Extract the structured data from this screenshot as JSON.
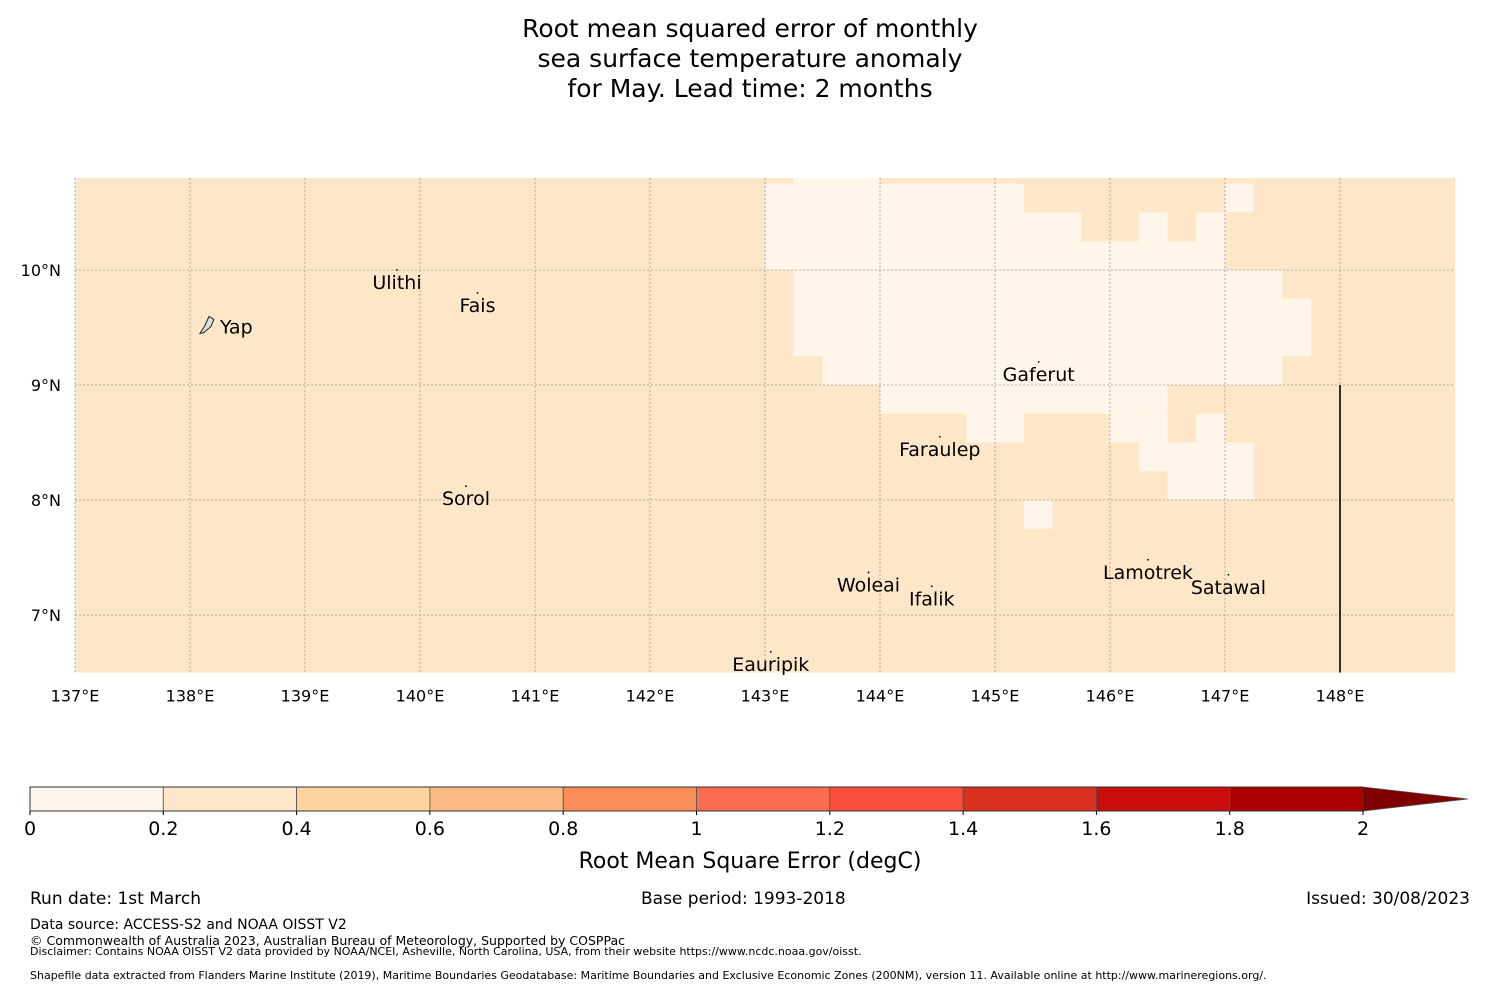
{
  "title": {
    "line1": "Root mean squared error of monthly",
    "line2": "sea surface temperature anomaly",
    "line3": "for May. Lead time: 2 months"
  },
  "map": {
    "lon_range": [
      137,
      149
    ],
    "lat_range": [
      6.5,
      10.8
    ],
    "grid_resolution_deg": 0.25,
    "lon_ticks": [
      {
        "value": 137,
        "label": "137°E"
      },
      {
        "value": 138,
        "label": "138°E"
      },
      {
        "value": 139,
        "label": "139°E"
      },
      {
        "value": 140,
        "label": "140°E"
      },
      {
        "value": 141,
        "label": "141°E"
      },
      {
        "value": 142,
        "label": "142°E"
      },
      {
        "value": 143,
        "label": "143°E"
      },
      {
        "value": 144,
        "label": "144°E"
      },
      {
        "value": 145,
        "label": "145°E"
      },
      {
        "value": 146,
        "label": "146°E"
      },
      {
        "value": 147,
        "label": "147°E"
      },
      {
        "value": 148,
        "label": "148°E"
      }
    ],
    "lat_ticks": [
      {
        "value": 10,
        "label": "10°N"
      },
      {
        "value": 9,
        "label": "9°N"
      },
      {
        "value": 8,
        "label": "8°N"
      },
      {
        "value": 7,
        "label": "7°N"
      }
    ],
    "base_class": "0.2-0.4",
    "low_error_class": "0-0.2",
    "low_error_cells": [
      {
        "lon0": 143.0,
        "lon1": 143.25,
        "lat0": 10.0,
        "lat1": 10.75
      },
      {
        "lon0": 143.25,
        "lon1": 143.5,
        "lat0": 9.25,
        "lat1": 10.8
      },
      {
        "lon0": 143.5,
        "lon1": 144.0,
        "lat0": 9.0,
        "lat1": 10.8
      },
      {
        "lon0": 144.0,
        "lon1": 144.75,
        "lat0": 8.75,
        "lat1": 10.75
      },
      {
        "lon0": 144.75,
        "lon1": 145.0,
        "lat0": 8.5,
        "lat1": 10.75
      },
      {
        "lon0": 145.0,
        "lon1": 145.25,
        "lat0": 8.5,
        "lat1": 10.75
      },
      {
        "lon0": 145.25,
        "lon1": 145.75,
        "lat0": 8.75,
        "lat1": 10.5
      },
      {
        "lon0": 145.75,
        "lon1": 146.25,
        "lat0": 8.75,
        "lat1": 10.25
      },
      {
        "lon0": 146.25,
        "lon1": 146.5,
        "lat0": 8.75,
        "lat1": 10.5
      },
      {
        "lon0": 146.5,
        "lon1": 146.75,
        "lat0": 9.0,
        "lat1": 10.25
      },
      {
        "lon0": 146.75,
        "lon1": 147.0,
        "lat0": 9.0,
        "lat1": 10.5
      },
      {
        "lon0": 147.0,
        "lon1": 147.5,
        "lat0": 9.0,
        "lat1": 10.0
      },
      {
        "lon0": 147.5,
        "lon1": 147.75,
        "lat0": 9.25,
        "lat1": 9.75
      },
      {
        "lon0": 146.0,
        "lon1": 146.25,
        "lat0": 8.5,
        "lat1": 8.75
      },
      {
        "lon0": 146.25,
        "lon1": 146.5,
        "lat0": 8.25,
        "lat1": 8.75
      },
      {
        "lon0": 146.5,
        "lon1": 146.75,
        "lat0": 8.0,
        "lat1": 8.5
      },
      {
        "lon0": 146.75,
        "lon1": 147.0,
        "lat0": 8.0,
        "lat1": 8.75
      },
      {
        "lon0": 147.0,
        "lon1": 147.25,
        "lat0": 8.0,
        "lat1": 8.5
      },
      {
        "lon0": 145.25,
        "lon1": 145.5,
        "lat0": 7.75,
        "lat1": 8.0
      },
      {
        "lon0": 147.0,
        "lon1": 147.25,
        "lat0": 10.5,
        "lat1": 10.75
      }
    ],
    "boundary_line": {
      "lon": 148.0,
      "lat0": 6.5,
      "lat1": 9.0
    },
    "places": [
      {
        "name": "Yap",
        "lon": 138.13,
        "lat": 9.5
      },
      {
        "name": "Ulithi",
        "lon": 139.8,
        "lat": 10.0
      },
      {
        "name": "Fais",
        "lon": 140.5,
        "lat": 9.8
      },
      {
        "name": "Sorol",
        "lon": 140.4,
        "lat": 8.12
      },
      {
        "name": "Gaferut",
        "lon": 145.38,
        "lat": 9.2
      },
      {
        "name": "Faraulep",
        "lon": 144.52,
        "lat": 8.55
      },
      {
        "name": "Woleai",
        "lon": 143.9,
        "lat": 7.37
      },
      {
        "name": "Ifalik",
        "lon": 144.45,
        "lat": 7.25
      },
      {
        "name": "Lamotrek",
        "lon": 146.33,
        "lat": 7.48
      },
      {
        "name": "Satawal",
        "lon": 147.03,
        "lat": 7.35
      },
      {
        "name": "Eauripik",
        "lon": 143.05,
        "lat": 6.68
      }
    ]
  },
  "colorbar": {
    "label": "Root Mean Square Error (degC)",
    "bins": [
      {
        "from": 0,
        "to": 0.2,
        "color": "#fff5e8"
      },
      {
        "from": 0.2,
        "to": 0.4,
        "color": "#fee6c8"
      },
      {
        "from": 0.4,
        "to": 0.6,
        "color": "#fdd49e"
      },
      {
        "from": 0.6,
        "to": 0.8,
        "color": "#fdbb84"
      },
      {
        "from": 0.8,
        "to": 1.0,
        "color": "#fc8d59"
      },
      {
        "from": 1.0,
        "to": 1.2,
        "color": "#fc6c4f"
      },
      {
        "from": 1.2,
        "to": 1.4,
        "color": "#fa4d3a"
      },
      {
        "from": 1.4,
        "to": 1.6,
        "color": "#d7301f"
      },
      {
        "from": 1.6,
        "to": 1.8,
        "color": "#c90d0d"
      },
      {
        "from": 1.8,
        "to": 2.0,
        "color": "#ad0000"
      }
    ],
    "extend_color": "#7f0000",
    "tick_labels": [
      "0",
      "0.2",
      "0.4",
      "0.6",
      "0.8",
      "1",
      "1.2",
      "1.4",
      "1.6",
      "1.8",
      "2"
    ]
  },
  "footer": {
    "run_date": "Run date: 1st March",
    "base_period": "Base period: 1993-2018",
    "issued": "Issued: 30/08/2023",
    "data_source": "Data source: ACCESS-S2 and NOAA OISST V2",
    "copyright": "© Commonwealth of Australia 2023, Australian Bureau of Meteorology, Supported by COSPPac",
    "disclaimer": "Disclaimer: Contains NOAA OISST V2 data provided by NOAA/NCEI, Asheville, North Carolina, USA, from their website https://www.ncdc.noaa.gov/oisst.",
    "shapefile": "Shapefile data extracted from Flanders Marine Institute (2019), Maritime Boundaries Geodatabase: Maritime Boundaries and Exclusive Economic Zones (200NM), version 11. Available online at http://www.marineregions.org/."
  }
}
